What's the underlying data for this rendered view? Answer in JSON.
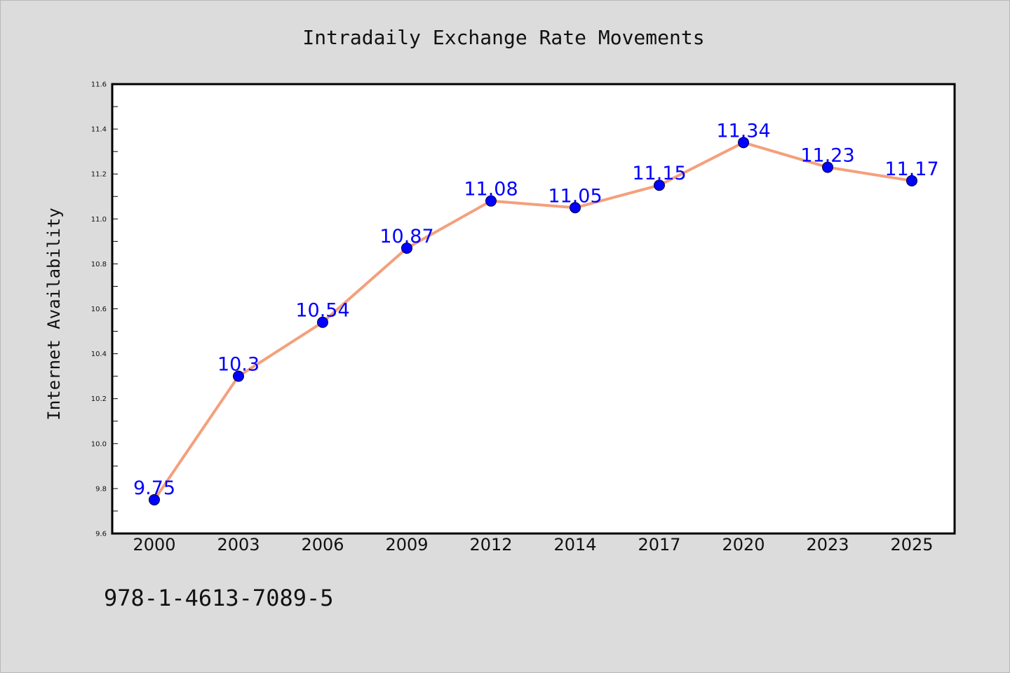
{
  "chart_data": {
    "type": "line",
    "title": "Intradaily Exchange Rate Movements",
    "xlabel": "",
    "ylabel": "Internet Availability",
    "categories": [
      "2000",
      "2003",
      "2006",
      "2009",
      "2012",
      "2014",
      "2017",
      "2020",
      "2023",
      "2025"
    ],
    "series": [
      {
        "values": [
          9.75,
          10.3,
          10.54,
          10.87,
          11.08,
          11.05,
          11.15,
          11.34,
          11.23,
          11.17
        ],
        "data_labels": [
          "9.75",
          "10.3",
          "10.54",
          "10.87",
          "11.08",
          "11.05",
          "11.15",
          "11.34",
          "11.23",
          "11.17"
        ]
      }
    ],
    "ylim": [
      9.6,
      11.6
    ],
    "yticks": [
      "9.6",
      "9.8",
      "10.0",
      "10.2",
      "10.4",
      "10.6",
      "10.8",
      "11.0",
      "11.2",
      "11.4",
      "11.6"
    ],
    "grid": false,
    "legend": "none",
    "colors": {
      "line": "#f4a07c",
      "marker": "#0000ff",
      "data_label": "#0000ff",
      "plot_background": "#ffffff",
      "figure_background": "#dcdcdc"
    }
  },
  "footnote": "978-1-4613-7089-5"
}
